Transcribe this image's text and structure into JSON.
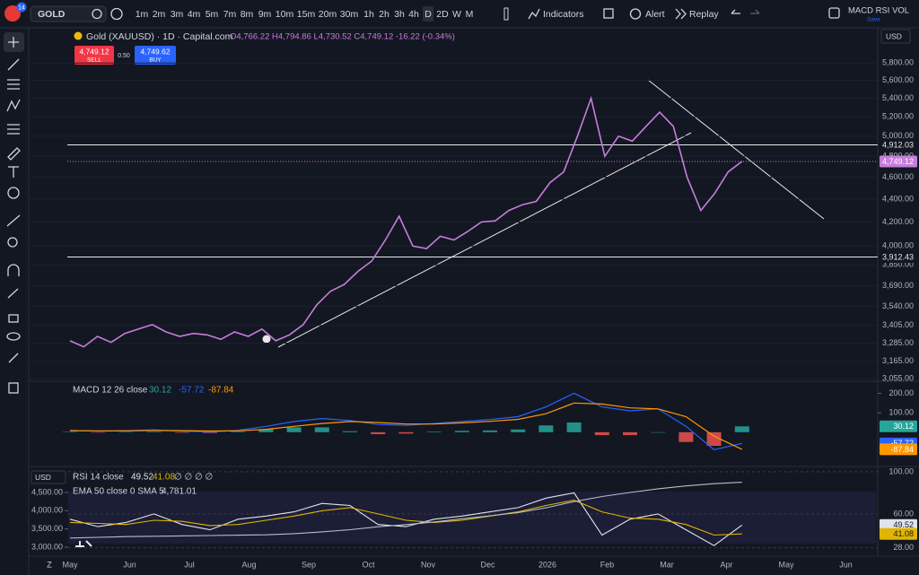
{
  "toolbar": {
    "badge": "14",
    "symbol": "GOLD",
    "timeframes": [
      "1m",
      "2m",
      "3m",
      "4m",
      "5m",
      "7m",
      "8m",
      "9m",
      "10m",
      "15m",
      "20m",
      "30m",
      "1h",
      "2h",
      "3h",
      "4h",
      "D",
      "2D",
      "W",
      "M"
    ],
    "indicators": "Indicators",
    "alert": "Alert",
    "replay": "Replay",
    "layout": "MACD RSI VOL",
    "save": "Save"
  },
  "legend": {
    "title": "Gold (XAUUSD) · 1D · Capital.com",
    "ohlc": "O4,766.22 H4,794.86 L4,730.52 C4,749.12 -16.22 (-0.34%)",
    "sell_price": "4,749.12",
    "sell": "SELL",
    "spread": "0.50",
    "buy_price": "4,749.62",
    "buy": "BUY"
  },
  "currency": "USD",
  "time_axis": [
    "May",
    "Jun",
    "Jul",
    "Aug",
    "Sep",
    "Oct",
    "Nov",
    "Dec",
    "2026",
    "Feb",
    "Mar",
    "Apr",
    "May",
    "Jun"
  ],
  "chart_data": [
    {
      "type": "line",
      "log_scale": true,
      "ylim": [
        3040,
        6230
      ],
      "yticks": [
        {
          "value": 5800,
          "label": "5,800.00"
        },
        {
          "value": 5600,
          "label": "5,600.00"
        },
        {
          "value": 5400,
          "label": "5,400.00"
        },
        {
          "value": 5200,
          "label": "5,200.00"
        },
        {
          "value": 5000,
          "label": "5,000.00"
        },
        {
          "value": 4800,
          "label": "4,800.00"
        },
        {
          "value": 4600,
          "label": "4,600.00"
        },
        {
          "value": 4400,
          "label": "4,400.00"
        },
        {
          "value": 4200,
          "label": "4,200.00"
        },
        {
          "value": 4000,
          "label": "4,000.00"
        },
        {
          "value": 3850,
          "label": "3,850.00"
        },
        {
          "value": 3690,
          "label": "3,690.00"
        },
        {
          "value": 3540,
          "label": "3,540.00"
        },
        {
          "value": 3405,
          "label": "3,405.00"
        },
        {
          "value": 3285,
          "label": "3,285.00"
        },
        {
          "value": 3165,
          "label": "3,165.00"
        },
        {
          "value": 3055,
          "label": "3,055.00"
        }
      ],
      "grid": true,
      "series": [
        {
          "color": "#c77ddb",
          "values": [
            3300,
            3260,
            3330,
            3290,
            3350,
            3380,
            3410,
            3360,
            3330,
            3350,
            3340,
            3310,
            3360,
            3330,
            3380,
            3300,
            3340,
            3410,
            3550,
            3650,
            3700,
            3800,
            3880,
            4050,
            4250,
            4000,
            3980,
            4080,
            4050,
            4120,
            4200,
            4210,
            4300,
            4350,
            4380,
            4550,
            4650,
            5000,
            5400,
            4800,
            5000,
            4950,
            5100,
            5250,
            5100,
            4600,
            4300,
            4450,
            4650,
            4749.12
          ]
        }
      ],
      "hlines": [
        {
          "value": 4912.03,
          "label": "4,912.03"
        },
        {
          "value": 3912.43,
          "label": "3,912.43"
        }
      ],
      "last_price": {
        "value": 4749.12,
        "label": "4,749.12"
      }
    },
    {
      "type": "macd",
      "title": "MACD 12 26 close",
      "ylim": [
        -176,
        262
      ],
      "yticks": [
        {
          "value": 200,
          "label": "200.00"
        },
        {
          "value": 100,
          "label": "100.00"
        }
      ],
      "series": [
        {
          "color": "#26a69a",
          "negative_color": "#ef5350",
          "values": [
            2,
            -2,
            1,
            3,
            -3,
            -4,
            3,
            15,
            25,
            25,
            5,
            -10,
            -7,
            3,
            7,
            9,
            14,
            35,
            50,
            -15,
            -15,
            0,
            -50,
            -70,
            30.12
          ]
        },
        {
          "color": "#2962ff",
          "values": [
            10,
            5,
            8,
            12,
            5,
            2,
            10,
            30,
            55,
            70,
            60,
            40,
            35,
            45,
            55,
            65,
            80,
            130,
            200,
            130,
            110,
            120,
            30,
            -90,
            -57.72
          ]
        },
        {
          "color": "#ff9800",
          "values": [
            8,
            7,
            7,
            9,
            8,
            6,
            7,
            15,
            30,
            45,
            55,
            50,
            42,
            42,
            48,
            56,
            66,
            95,
            150,
            145,
            125,
            120,
            80,
            -20,
            -87.84
          ]
        }
      ]
    },
    {
      "type": "rsi",
      "title": "RSI 14 close",
      "empty_values": "∅ ∅ ∅ ∅",
      "overlay_title": "EMA 50 close 0 SMA 5",
      "ylim": [
        20,
        105
      ],
      "yticks": [
        {
          "value": 100,
          "label": "100.00"
        },
        {
          "value": 60,
          "label": "60.00"
        },
        {
          "value": 28,
          "label": "28.00"
        }
      ],
      "y2lim": [
        2754,
        5213
      ],
      "y2ticks": [
        {
          "value": 4500,
          "label": "4,500.00"
        },
        {
          "value": 4000,
          "label": "4,000.00"
        },
        {
          "value": 3500,
          "label": "3,500.00"
        },
        {
          "value": 3000,
          "label": "3,000.00"
        }
      ],
      "series": [
        {
          "color": "#e1e3ea",
          "values": [
            55,
            48,
            52,
            60,
            50,
            45,
            55,
            58,
            62,
            70,
            68,
            50,
            48,
            55,
            58,
            62,
            66,
            75,
            80,
            40,
            55,
            60,
            45,
            30,
            49.52
          ]
        },
        {
          "color": "#e0b400",
          "values": [
            52,
            51,
            50,
            54,
            53,
            49,
            50,
            54,
            58,
            63,
            66,
            60,
            54,
            52,
            54,
            58,
            62,
            68,
            73,
            62,
            56,
            55,
            50,
            40,
            41.08
          ]
        },
        {
          "color": "#b8bcc8",
          "axis": "y2",
          "values": [
            3250,
            3270,
            3290,
            3300,
            3310,
            3320,
            3330,
            3340,
            3370,
            3420,
            3480,
            3560,
            3620,
            3690,
            3780,
            3860,
            3950,
            4080,
            4250,
            4390,
            4500,
            4600,
            4680,
            4740,
            4781.01
          ]
        }
      ],
      "ema_last": {
        "value": 4781.01,
        "label": "4,781.01"
      }
    }
  ]
}
